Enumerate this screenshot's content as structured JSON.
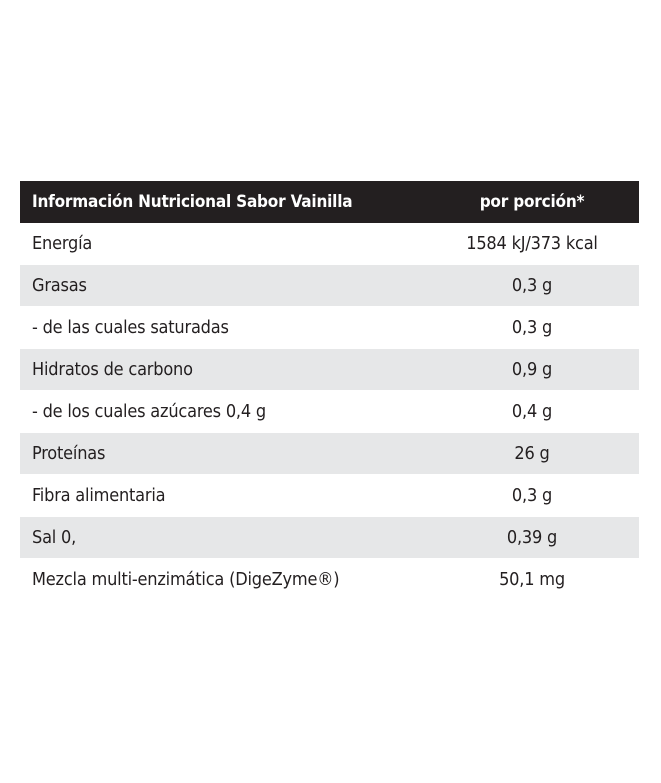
{
  "table": {
    "header": {
      "name": "Información Nutricional Sabor Vainilla",
      "value": "por porción*"
    },
    "rows": [
      {
        "name": "Energía",
        "value": "1584 kJ/373 kcal"
      },
      {
        "name": "Grasas",
        "value": "0,3 g"
      },
      {
        "name": "- de las cuales saturadas",
        "value": "0,3 g"
      },
      {
        "name": "Hidratos de carbono",
        "value": "0,9 g"
      },
      {
        "name": "- de los cuales azúcares 0,4 g",
        "value": "0,4 g"
      },
      {
        "name": "Proteínas",
        "value": "26 g"
      },
      {
        "name": "Fibra alimentaria",
        "value": "0,3 g"
      },
      {
        "name": "Sal 0,",
        "value": "0,39 g"
      },
      {
        "name": "Mezcla multi-enzimática (DigeZyme®)",
        "value": "50,1 mg"
      }
    ]
  }
}
